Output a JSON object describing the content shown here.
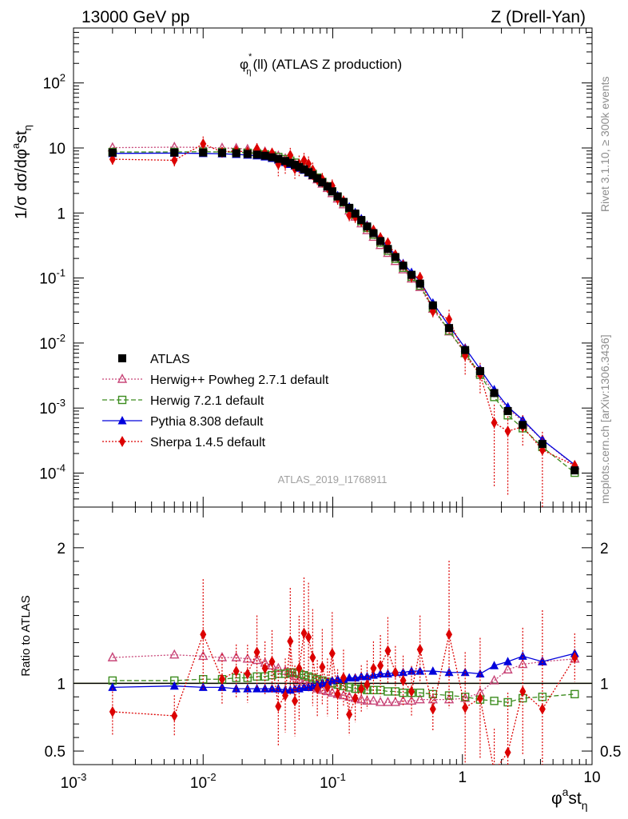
{
  "header": {
    "left_title": "13000 GeV pp",
    "right_title": "Z (Drell-Yan)"
  },
  "plot_title": {
    "main": "φ",
    "sup": "*",
    "sub": "η",
    "rest": "(ll) (ATLAS Z production)"
  },
  "side_text": {
    "rivet": "Rivet 3.1.10, ≥ 300k events",
    "mcplots": "mcplots.cern.ch [arXiv:1306.3436]"
  },
  "watermark": "ATLAS_2019_I1768911",
  "chart_data": {
    "type": "scatter",
    "x": [
      0.002,
      0.006,
      0.01,
      0.014,
      0.018,
      0.022,
      0.026,
      0.03,
      0.034,
      0.038,
      0.043,
      0.047,
      0.051,
      0.055,
      0.06,
      0.065,
      0.07,
      0.076,
      0.083,
      0.091,
      0.099,
      0.109,
      0.121,
      0.134,
      0.149,
      0.166,
      0.184,
      0.206,
      0.233,
      0.266,
      0.304,
      0.349,
      0.405,
      0.471,
      0.592,
      0.789,
      1.05,
      1.37,
      1.76,
      2.24,
      2.92,
      4.14,
      7.35
    ],
    "xlabel": {
      "main": "φ",
      "sup": "a",
      "rest": "st",
      "sub": "η"
    },
    "ylabel": "1/σ dσ/dφ^a st_η",
    "ratio_ylabel": "Ratio to ATLAS",
    "xscale": "log",
    "yscale": "log",
    "xlim": [
      0.001,
      10
    ],
    "ylim": [
      3e-05,
      700
    ],
    "ratio_ylim": [
      0.4,
      2.3
    ],
    "x_ticks": [
      "10^-3",
      "10^-2",
      "10^-1",
      "1",
      "10"
    ],
    "y_ticks": [
      "10^-4",
      "10^-3",
      "10^-2",
      "10^-1",
      "1",
      "10",
      "10^2"
    ],
    "ratio_ticks": [
      "0.5",
      "1",
      "2"
    ],
    "legend_position": "bottom-left",
    "series": [
      {
        "name": "ATLAS",
        "color": "#000000",
        "marker": "filled-square",
        "line": "none",
        "values": [
          8.5,
          8.5,
          8.5,
          8.4,
          8.3,
          8.1,
          7.9,
          7.6,
          7.2,
          6.8,
          6.3,
          5.9,
          5.5,
          5.1,
          4.7,
          4.25,
          3.85,
          3.4,
          2.95,
          2.55,
          2.15,
          1.8,
          1.48,
          1.2,
          0.98,
          0.78,
          0.62,
          0.49,
          0.37,
          0.28,
          0.21,
          0.155,
          0.112,
          0.082,
          0.038,
          0.017,
          0.0078,
          0.0037,
          0.0017,
          0.0009,
          0.00055,
          0.00028,
          0.00011
        ]
      },
      {
        "name": "Herwig++ Powheg 2.7.1 default",
        "color": "#c84678",
        "marker": "open-triangle",
        "line": "dotted",
        "ratio": [
          1.19,
          1.21,
          1.2,
          1.19,
          1.19,
          1.18,
          1.17,
          1.15,
          1.13,
          1.11,
          1.09,
          1.07,
          1.05,
          1.03,
          1.01,
          0.99,
          0.97,
          0.96,
          0.95,
          0.94,
          0.93,
          0.92,
          0.91,
          0.9,
          0.89,
          0.88,
          0.87,
          0.87,
          0.86,
          0.86,
          0.86,
          0.87,
          0.87,
          0.88,
          0.88,
          0.88,
          0.89,
          0.93,
          1.02,
          1.1,
          1.14,
          1.16,
          1.18
        ]
      },
      {
        "name": "Herwig 7.2.1 default",
        "color": "#3c8c1e",
        "marker": "open-square",
        "line": "dashed",
        "ratio": [
          1.02,
          1.02,
          1.03,
          1.03,
          1.04,
          1.04,
          1.05,
          1.05,
          1.06,
          1.07,
          1.07,
          1.08,
          1.08,
          1.07,
          1.06,
          1.05,
          1.04,
          1.03,
          1.02,
          1.01,
          1.0,
          0.99,
          0.98,
          0.97,
          0.96,
          0.96,
          0.95,
          0.95,
          0.95,
          0.94,
          0.94,
          0.93,
          0.93,
          0.93,
          0.92,
          0.91,
          0.9,
          0.88,
          0.87,
          0.86,
          0.89,
          0.9,
          0.92
        ]
      },
      {
        "name": "Pythia 8.308 default",
        "color": "#0000dc",
        "marker": "filled-triangle",
        "line": "solid",
        "ratio": [
          0.97,
          0.98,
          0.97,
          0.97,
          0.96,
          0.96,
          0.96,
          0.96,
          0.96,
          0.96,
          0.95,
          0.95,
          0.96,
          0.96,
          0.97,
          0.97,
          0.98,
          0.99,
          1.0,
          1.01,
          1.02,
          1.03,
          1.03,
          1.04,
          1.04,
          1.05,
          1.05,
          1.06,
          1.07,
          1.07,
          1.08,
          1.08,
          1.09,
          1.09,
          1.09,
          1.08,
          1.08,
          1.07,
          1.13,
          1.16,
          1.2,
          1.16,
          1.22
        ]
      },
      {
        "name": "Sherpa 1.4.5 default",
        "color": "#dc0000",
        "marker": "filled-diamond",
        "line": "dotted",
        "ratio": [
          0.79,
          0.76,
          1.36,
          1.03,
          1.09,
          1.07,
          1.23,
          1.11,
          1.16,
          0.83,
          0.91,
          1.31,
          0.87,
          1.11,
          1.37,
          1.34,
          1.19,
          0.96,
          1.12,
          0.97,
          1.22,
          0.92,
          1.04,
          0.77,
          0.89,
          0.96,
          0.99,
          1.11,
          1.13,
          1.24,
          1.08,
          1.02,
          0.94,
          1.25,
          0.81,
          1.36,
          0.82,
          0.89,
          0.35,
          0.49,
          0.94,
          0.81,
          1.19
        ],
        "rel_error": [
          0.22,
          0.2,
          0.3,
          0.18,
          0.18,
          0.2,
          0.22,
          0.18,
          0.2,
          0.35,
          0.3,
          0.3,
          0.3,
          0.35,
          0.3,
          0.3,
          0.3,
          0.22,
          0.25,
          0.22,
          0.25,
          0.2,
          0.2,
          0.2,
          0.2,
          0.18,
          0.18,
          0.18,
          0.2,
          0.2,
          0.18,
          0.18,
          0.2,
          0.2,
          0.2,
          0.4,
          0.5,
          0.5,
          0.9,
          0.9,
          0.5,
          0.9,
          0.15
        ]
      }
    ]
  }
}
